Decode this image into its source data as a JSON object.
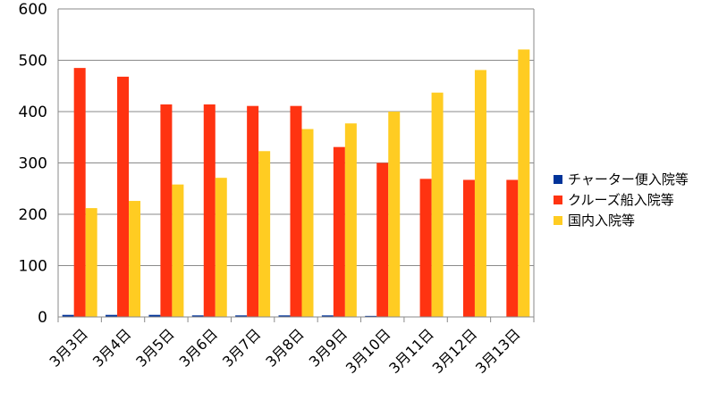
{
  "chart_data": {
    "type": "bar",
    "title": "",
    "xlabel": "",
    "ylabel": "",
    "ylim": [
      0,
      600
    ],
    "yticks": [
      0,
      100,
      200,
      300,
      400,
      500,
      600
    ],
    "grid": true,
    "legend_position": "right",
    "categories": [
      "3月3日",
      "3月4日",
      "3月5日",
      "3月6日",
      "3月7日",
      "3月8日",
      "3月9日",
      "3月10日",
      "3月11日",
      "3月12日",
      "3月13日"
    ],
    "series": [
      {
        "name": "チャーター便入院等",
        "color": "#003399",
        "values": [
          4,
          4,
          4,
          3,
          3,
          3,
          3,
          2,
          0,
          0,
          0
        ]
      },
      {
        "name": "クルーズ船入院等",
        "color": "#ff3311",
        "values": [
          485,
          468,
          414,
          414,
          411,
          411,
          331,
          300,
          269,
          267,
          267
        ]
      },
      {
        "name": "国内入院等",
        "color": "#ffcc22",
        "values": [
          212,
          226,
          258,
          271,
          323,
          366,
          377,
          400,
          437,
          481,
          521
        ]
      }
    ]
  }
}
